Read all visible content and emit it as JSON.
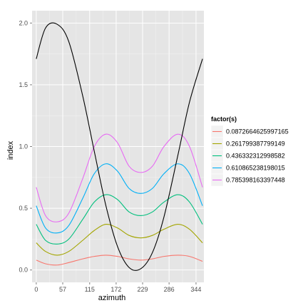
{
  "chart_data": {
    "type": "line",
    "xlabel": "azimuth",
    "ylabel": "index",
    "xlim": [
      -9,
      361
    ],
    "ylim": [
      -0.1,
      2.1
    ],
    "x_ticks": [
      0,
      57,
      115,
      172,
      229,
      286,
      344
    ],
    "x_tick_labels": [
      "0",
      "57",
      "115",
      "172",
      "229",
      "286",
      "344"
    ],
    "y_ticks": [
      0.0,
      0.5,
      1.0,
      1.5,
      2.0
    ],
    "y_tick_labels": [
      "0.0",
      "0.5",
      "1.0",
      "1.5",
      "2.0"
    ],
    "grid": true,
    "legend": {
      "title": "factor(s)",
      "placement": "right",
      "entries": [
        "0.0872664625997165",
        "0.261799387799149",
        "0.436332312998582",
        "0.610865238198015",
        "0.785398163397448"
      ]
    },
    "colors": [
      "#F8766D",
      "#A3A500",
      "#00BF7D",
      "#00B0F6",
      "#E76BF3"
    ],
    "line_color_extra": "#000000",
    "x": [
      0,
      20,
      45,
      70,
      100,
      125,
      150,
      175,
      200,
      225,
      250,
      275,
      305,
      330,
      358
    ],
    "series": [
      {
        "name": "0.0872664625997165",
        "values": [
          0.08,
          0.05,
          0.04,
          0.06,
          0.09,
          0.11,
          0.12,
          0.11,
          0.09,
          0.08,
          0.09,
          0.11,
          0.12,
          0.11,
          0.07
        ]
      },
      {
        "name": "0.261799387799149",
        "values": [
          0.22,
          0.15,
          0.12,
          0.15,
          0.24,
          0.32,
          0.37,
          0.34,
          0.28,
          0.26,
          0.28,
          0.33,
          0.37,
          0.33,
          0.22
        ]
      },
      {
        "name": "0.436332312998582",
        "values": [
          0.37,
          0.24,
          0.21,
          0.25,
          0.41,
          0.55,
          0.61,
          0.57,
          0.47,
          0.44,
          0.47,
          0.55,
          0.61,
          0.55,
          0.37
        ]
      },
      {
        "name": "0.610865238198015",
        "values": [
          0.52,
          0.34,
          0.3,
          0.36,
          0.58,
          0.78,
          0.86,
          0.8,
          0.66,
          0.62,
          0.66,
          0.78,
          0.86,
          0.78,
          0.52
        ]
      },
      {
        "name": "0.785398163397448",
        "values": [
          0.67,
          0.44,
          0.39,
          0.46,
          0.74,
          1.0,
          1.1,
          1.03,
          0.84,
          0.79,
          0.84,
          1.0,
          1.1,
          1.0,
          0.67
        ]
      },
      {
        "values": [
          1.71,
          1.96,
          1.99,
          1.85,
          1.41,
          0.96,
          0.52,
          0.19,
          0.02,
          0.01,
          0.14,
          0.43,
          0.93,
          1.36,
          1.71
        ]
      }
    ]
  }
}
